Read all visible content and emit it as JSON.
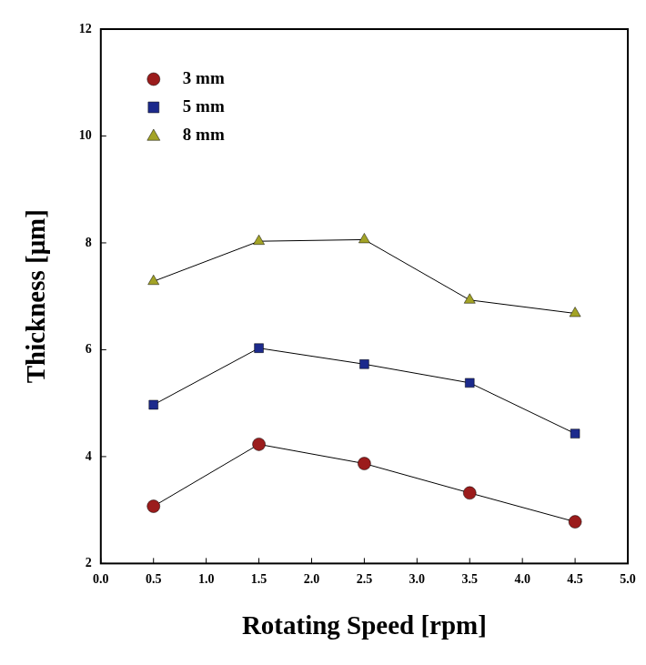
{
  "chart_data": {
    "type": "line",
    "x_label": "Rotating Speed [rpm]",
    "y_label": "Thickness [μm]",
    "x": [
      0.5,
      1.5,
      2.5,
      3.5,
      4.5
    ],
    "series": [
      {
        "name": "3 mm",
        "color": "#9b1c1c",
        "marker": "circle",
        "values": [
          3.07,
          4.23,
          3.87,
          3.32,
          2.78
        ]
      },
      {
        "name": "5 mm",
        "color": "#1c2a8c",
        "marker": "square",
        "values": [
          4.97,
          6.03,
          5.73,
          5.38,
          4.43
        ]
      },
      {
        "name": "8 mm",
        "color": "#a3a326",
        "marker": "triangle",
        "values": [
          7.28,
          8.03,
          8.06,
          6.93,
          6.68
        ]
      }
    ],
    "xlim": [
      0,
      5
    ],
    "xticks": [
      {
        "value": 0,
        "label": "0.0"
      },
      0.5,
      {
        "value": 1,
        "label": "1.0"
      },
      1.5,
      {
        "value": 2,
        "label": "2.0"
      },
      2.5,
      {
        "value": 3,
        "label": "3.0"
      },
      3.5,
      {
        "value": 4,
        "label": "4.0"
      },
      4.5,
      {
        "value": 5,
        "label": "5.0"
      }
    ],
    "ylim": [
      2,
      12
    ],
    "yticks": [
      2,
      4,
      6,
      8,
      10,
      12
    ],
    "grid": false,
    "legend": "upper left"
  }
}
